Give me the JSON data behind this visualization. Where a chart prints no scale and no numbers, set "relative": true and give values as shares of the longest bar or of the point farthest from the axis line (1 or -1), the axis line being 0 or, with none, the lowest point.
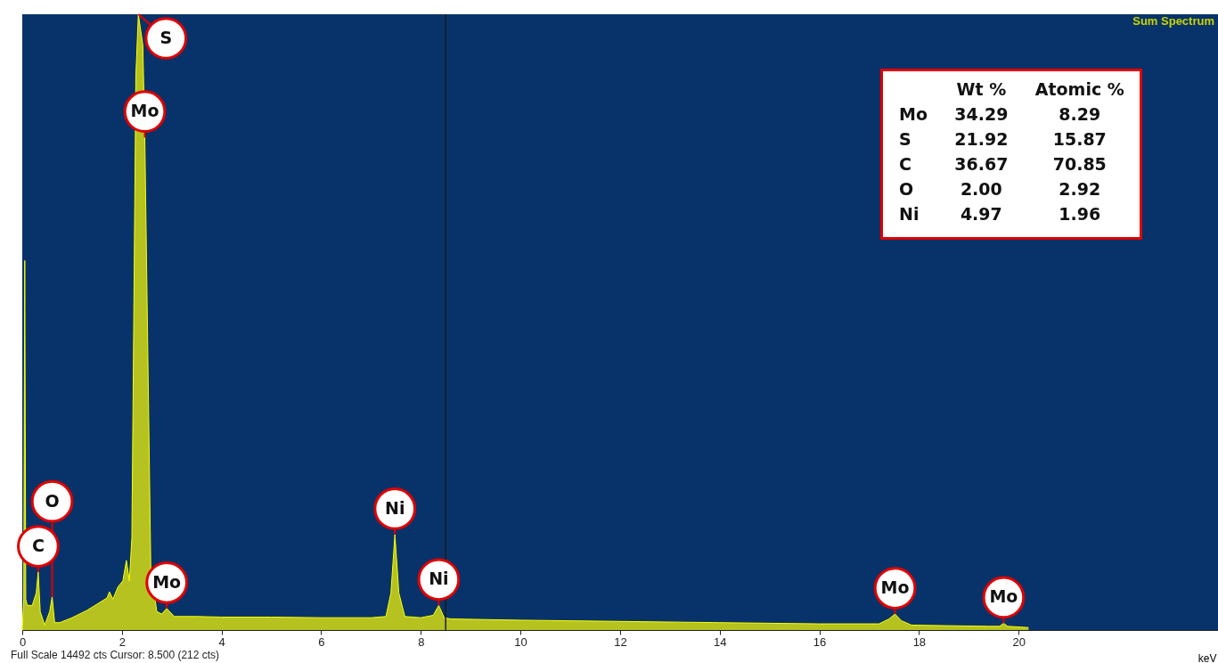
{
  "chart_data": [
    {
      "type": "area",
      "title": "Sum Spectrum",
      "xlabel": "keV",
      "relative": true,
      "color": "#ffff00",
      "grid": false,
      "x": [
        0,
        0.03,
        0.05,
        0.07,
        0.1,
        0.2,
        0.28,
        0.32,
        0.36,
        0.45,
        0.55,
        0.6,
        0.65,
        0.75,
        1.0,
        1.3,
        1.5,
        1.7,
        1.75,
        1.82,
        1.92,
        2.02,
        2.09,
        2.15,
        2.2,
        2.28,
        2.33,
        2.42,
        2.46,
        2.58,
        2.7,
        2.8,
        2.9,
        3.05,
        3.5,
        4,
        5,
        6,
        7,
        7.3,
        7.4,
        7.48,
        7.56,
        7.68,
        8.0,
        8.25,
        8.36,
        8.47,
        8.6,
        10,
        12,
        14,
        16,
        17.2,
        17.4,
        17.52,
        17.65,
        17.85,
        19.4,
        19.62,
        19.7,
        19.78,
        20.2
      ],
      "values": [
        0,
        0.05,
        0.6,
        0.05,
        0.04,
        0.04,
        0.06,
        0.094,
        0.03,
        0.008,
        0.03,
        0.054,
        0.012,
        0.012,
        0.02,
        0.032,
        0.042,
        0.052,
        0.062,
        0.05,
        0.07,
        0.08,
        0.113,
        0.08,
        0.15,
        0.9,
        1,
        0.95,
        0.8,
        0.1,
        0.03,
        0.026,
        0.035,
        0.022,
        0.022,
        0.021,
        0.021,
        0.02,
        0.02,
        0.022,
        0.06,
        0.155,
        0.06,
        0.022,
        0.02,
        0.024,
        0.04,
        0.02,
        0.018,
        0.016,
        0.014,
        0.012,
        0.01,
        0.01,
        0.018,
        0.026,
        0.015,
        0.008,
        0.006,
        0.006,
        0.011,
        0.006,
        0.004
      ],
      "xlim": [
        0,
        24.2
      ],
      "xticks": [
        0,
        2,
        4,
        6,
        8,
        10,
        12,
        14,
        16,
        18,
        20
      ],
      "ref_lines": [
        {
          "axis": "x",
          "value": 8.5,
          "color": "#1a1a1a"
        }
      ],
      "annotations": [
        {
          "text": "S",
          "x": 2.33,
          "y": 1
        },
        {
          "text": "Mo",
          "x": 2.46,
          "y": 0.8
        },
        {
          "text": "C",
          "x": 0.32,
          "y": 0.094
        },
        {
          "text": "O",
          "x": 0.6,
          "y": 0.054
        },
        {
          "text": "Mo",
          "x": 2.9,
          "y": 0.035
        },
        {
          "text": "Ni",
          "x": 7.48,
          "y": 0.155
        },
        {
          "text": "Ni",
          "x": 8.36,
          "y": 0.04
        },
        {
          "text": "Mo",
          "x": 17.52,
          "y": 0.026
        },
        {
          "text": "Mo",
          "x": 19.7,
          "y": 0.011
        },
        "Full Scale 14492 cts Cursor: 8.500  (212 cts)"
      ]
    },
    {
      "type": "other",
      "annotations": [
        "Wt %",
        "Atomic %",
        "Mo",
        "34.29",
        "8.29",
        "S",
        "21.92",
        "15.87",
        "C",
        "36.67",
        "70.85",
        "O",
        "2.00",
        "2.92",
        "Ni",
        "4.97",
        "1.96"
      ]
    }
  ]
}
